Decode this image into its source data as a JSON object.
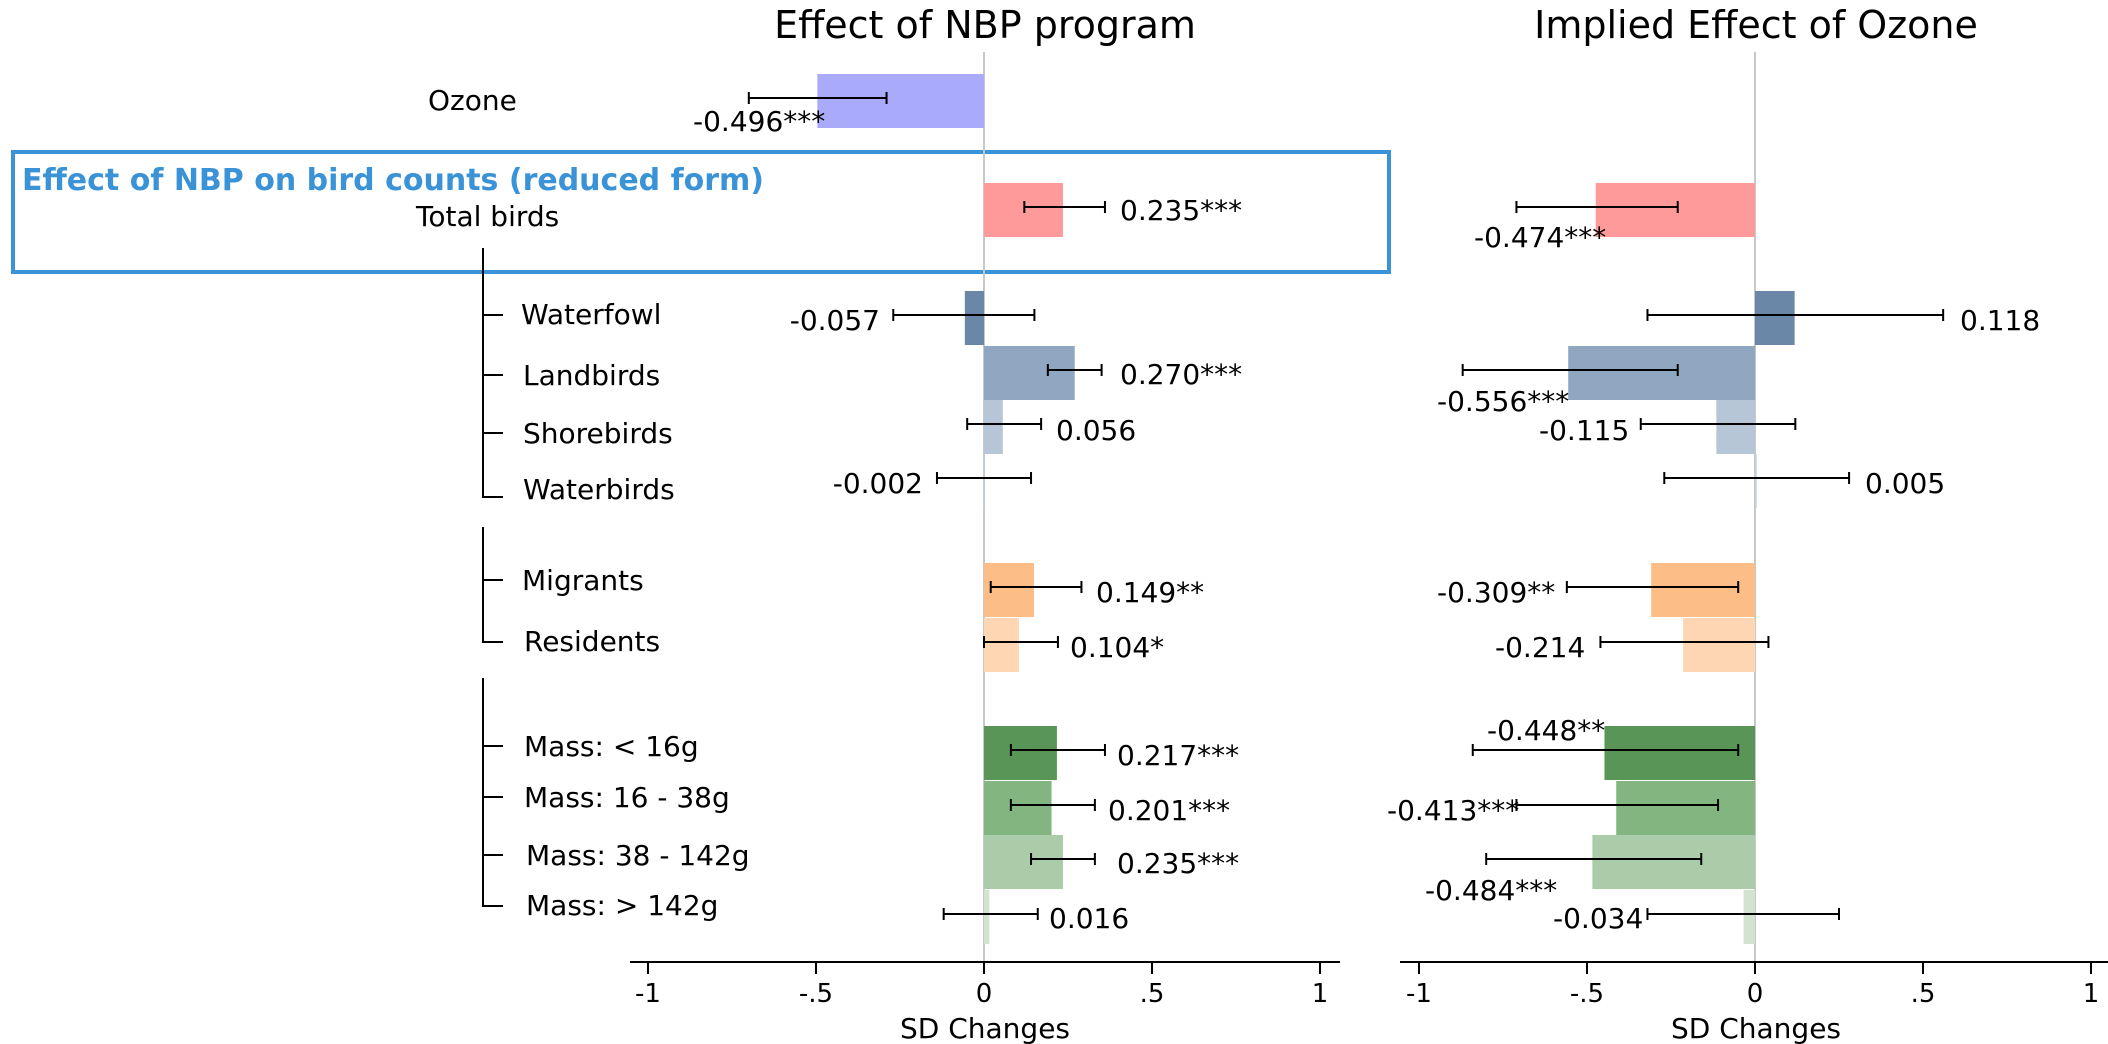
{
  "chart_data": [
    {
      "type": "bar",
      "title": "Effect of NBP program",
      "xlabel": "SD Changes",
      "ylabel": "",
      "xlim": [
        -1,
        1
      ],
      "xticks": [
        "-1",
        "-.5",
        "0",
        ".5",
        "1"
      ],
      "categories": [
        "Ozone",
        "Total birds",
        "Waterfowl",
        "Landbirds",
        "Shorebirds",
        "Waterbirds",
        "Migrants",
        "Residents",
        "Mass: < 16g",
        "Mass: 16 - 38g",
        "Mass: 38 - 142g",
        "Mass: > 142g"
      ],
      "values": [
        -0.496,
        0.235,
        -0.057,
        0.27,
        0.056,
        -0.002,
        0.149,
        0.104,
        0.217,
        0.201,
        0.235,
        0.016
      ],
      "ci_low": [
        -0.7,
        0.12,
        -0.27,
        0.19,
        -0.05,
        -0.14,
        0.02,
        0.0,
        0.08,
        0.08,
        0.14,
        -0.12
      ],
      "ci_high": [
        -0.29,
        0.36,
        0.15,
        0.35,
        0.17,
        0.14,
        0.29,
        0.22,
        0.36,
        0.33,
        0.33,
        0.16
      ],
      "value_labels": [
        "-0.496***",
        "0.235***",
        "-0.057",
        "0.270***",
        "0.056",
        "-0.002",
        "0.149**",
        "0.104*",
        "0.217***",
        "0.201***",
        "0.235***",
        "0.016"
      ],
      "colors": [
        "#aaaafa",
        "#fe9a9a",
        "#6a87a8",
        "#8fa7c0",
        "#b6c6d7",
        "#c3d0de",
        "#fdbd87",
        "#fed6b4",
        "#5a9558",
        "#82b57f",
        "#aacca8",
        "#d2e3d0"
      ]
    },
    {
      "type": "bar",
      "title": "Implied Effect of Ozone",
      "xlabel": "SD Changes",
      "ylabel": "",
      "xlim": [
        -1,
        1
      ],
      "xticks": [
        "-1",
        "-.5",
        "0",
        ".5",
        "1"
      ],
      "categories": [
        "Total birds",
        "Waterfowl",
        "Landbirds",
        "Shorebirds",
        "Waterbirds",
        "Migrants",
        "Residents",
        "Mass: < 16g",
        "Mass: 16 - 38g",
        "Mass: 38 - 142g",
        "Mass: > 142g"
      ],
      "values": [
        -0.474,
        0.118,
        -0.556,
        -0.115,
        0.005,
        -0.309,
        -0.214,
        -0.448,
        -0.413,
        -0.484,
        -0.034
      ],
      "ci_low": [
        -0.71,
        -0.32,
        -0.87,
        -0.34,
        -0.27,
        -0.56,
        -0.46,
        -0.84,
        -0.71,
        -0.8,
        -0.32
      ],
      "ci_high": [
        -0.23,
        0.56,
        -0.23,
        0.12,
        0.28,
        -0.05,
        0.04,
        -0.05,
        -0.11,
        -0.16,
        0.25
      ],
      "value_labels": [
        "-0.474***",
        "0.118",
        "-0.556***",
        "-0.115",
        "0.005",
        "-0.309**",
        "-0.214",
        "-0.448**",
        "-0.413***",
        "-0.484***",
        "-0.034"
      ],
      "colors": [
        "#fe9a9a",
        "#6a87a8",
        "#8fa7c0",
        "#b6c6d7",
        "#c3d0de",
        "#fdbd87",
        "#fed6b4",
        "#5a9558",
        "#82b57f",
        "#aacca8",
        "#d2e3d0"
      ]
    }
  ],
  "annotation": "Effect of NBP on bird counts (reduced form)",
  "annotation_color": "#3a93d6"
}
